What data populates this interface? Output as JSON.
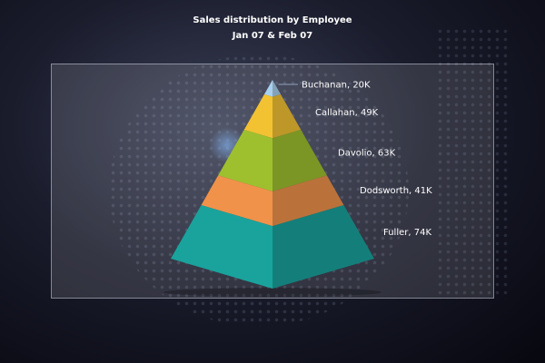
{
  "title": "Sales distribution by Employee",
  "subtitle": "Jan 07 & Feb 07",
  "chart_data": {
    "type": "pyramid",
    "title": "Sales distribution by Employee",
    "subtitle": "Jan 07 & Feb 07",
    "series": [
      {
        "name": "Buchanan",
        "value": 20,
        "label": "Buchanan, 20K",
        "color": "#a8d0ee"
      },
      {
        "name": "Callahan",
        "value": 49,
        "label": "Callahan, 49K",
        "color": "#f2c232"
      },
      {
        "name": "Davolio",
        "value": 63,
        "label": "Davolio, 63K",
        "color": "#9ec02e"
      },
      {
        "name": "Dodsworth",
        "value": 41,
        "label": "Dodsworth, 41K",
        "color": "#f0924a"
      },
      {
        "name": "Fuller",
        "value": 74,
        "label": "Fuller, 74K",
        "color": "#1aa39c"
      }
    ],
    "unit": "K"
  }
}
